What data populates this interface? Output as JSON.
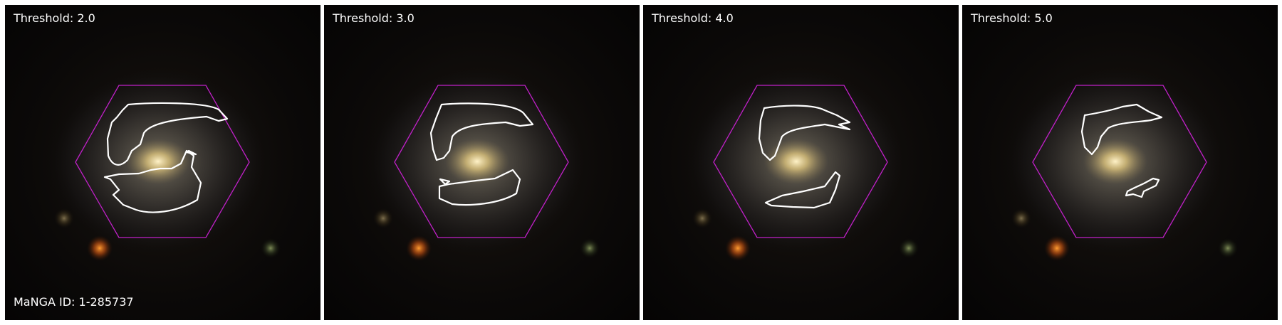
{
  "panels": [
    {
      "threshold_label": "Threshold: 2.0"
    },
    {
      "threshold_label": "Threshold: 3.0"
    },
    {
      "threshold_label": "Threshold: 4.0"
    },
    {
      "threshold_label": "Threshold: 5.0"
    }
  ],
  "galaxy_id_label": "MaNGA ID: 1-285737",
  "colors": {
    "hexagon": "#c020c8",
    "contour": "#ffffff",
    "background": "#050404",
    "galaxy_core": "#f0d890"
  }
}
